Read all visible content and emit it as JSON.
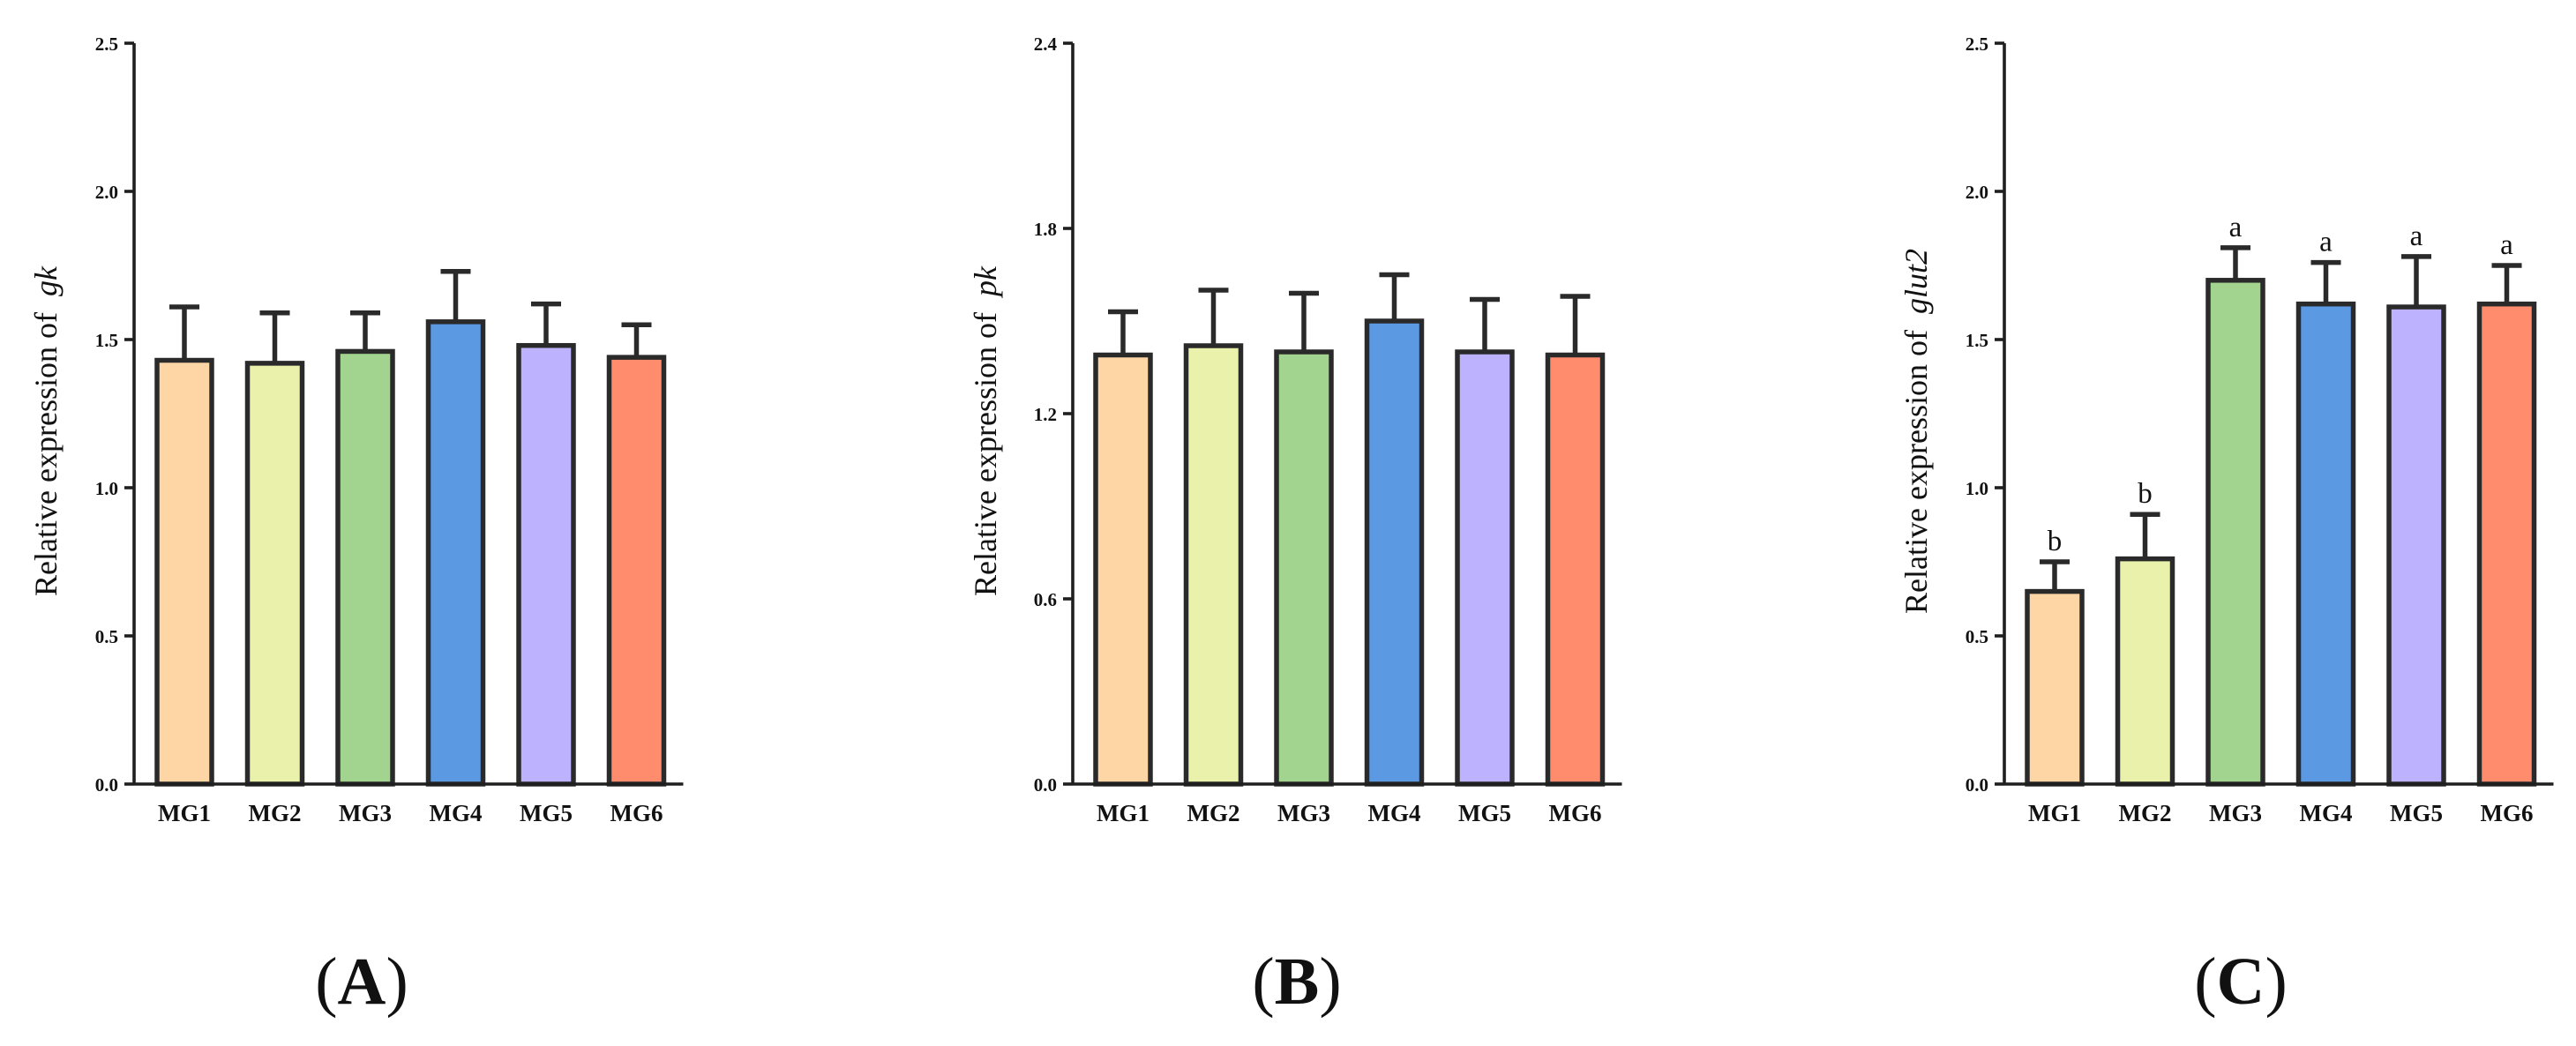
{
  "chart_data": [
    {
      "type": "bar",
      "panel_label": "A",
      "ylabel_prefix": "Relative expression of",
      "ylabel_gene": "gk",
      "categories": [
        "MG1",
        "MG2",
        "MG3",
        "MG4",
        "MG5",
        "MG6"
      ],
      "values": [
        1.43,
        1.42,
        1.46,
        1.56,
        1.48,
        1.44
      ],
      "errors": [
        0.18,
        0.17,
        0.13,
        0.17,
        0.14,
        0.11
      ],
      "ylim": [
        0,
        2.5
      ],
      "yticks": [
        "0.0",
        "0.5",
        "1.0",
        "1.5",
        "2.0",
        "2.5"
      ],
      "ytick_values": [
        0,
        0.5,
        1.0,
        1.5,
        2.0,
        2.5
      ],
      "colors": [
        "#fed5a5",
        "#e9f1aa",
        "#a3d48f",
        "#5b99e3",
        "#bdb2fe",
        "#fe8c6d"
      ],
      "significance": []
    },
    {
      "type": "bar",
      "panel_label": "B",
      "ylabel_prefix": "Relative expression of",
      "ylabel_gene": "pk",
      "categories": [
        "MG1",
        "MG2",
        "MG3",
        "MG4",
        "MG5",
        "MG6"
      ],
      "values": [
        1.39,
        1.42,
        1.4,
        1.5,
        1.4,
        1.39
      ],
      "errors": [
        0.14,
        0.18,
        0.19,
        0.15,
        0.17,
        0.19
      ],
      "ylim": [
        0,
        2.4
      ],
      "yticks": [
        "0.0",
        "0.6",
        "1.2",
        "1.8",
        "2.4"
      ],
      "ytick_values": [
        0,
        0.6,
        1.2,
        1.8,
        2.4
      ],
      "colors": [
        "#fed5a5",
        "#e9f1aa",
        "#a3d48f",
        "#5b99e3",
        "#bdb2fe",
        "#fe8c6d"
      ],
      "significance": []
    },
    {
      "type": "bar",
      "panel_label": "C",
      "ylabel_prefix": "Relative expression of",
      "ylabel_gene": "glut2",
      "categories": [
        "MG1",
        "MG2",
        "MG3",
        "MG4",
        "MG5",
        "MG6"
      ],
      "values": [
        0.65,
        0.76,
        1.7,
        1.62,
        1.61,
        1.62
      ],
      "errors": [
        0.1,
        0.15,
        0.11,
        0.14,
        0.17,
        0.13
      ],
      "ylim": [
        0,
        2.5
      ],
      "yticks": [
        "0.0",
        "0.5",
        "1.0",
        "1.5",
        "2.0",
        "2.5"
      ],
      "ytick_values": [
        0,
        0.5,
        1.0,
        1.5,
        2.0,
        2.5
      ],
      "colors": [
        "#fed5a5",
        "#e9f1aa",
        "#a3d48f",
        "#5b99e3",
        "#bdb2fe",
        "#fe8c6d"
      ],
      "significance": [
        "b",
        "b",
        "a",
        "a",
        "a",
        "a"
      ]
    }
  ]
}
